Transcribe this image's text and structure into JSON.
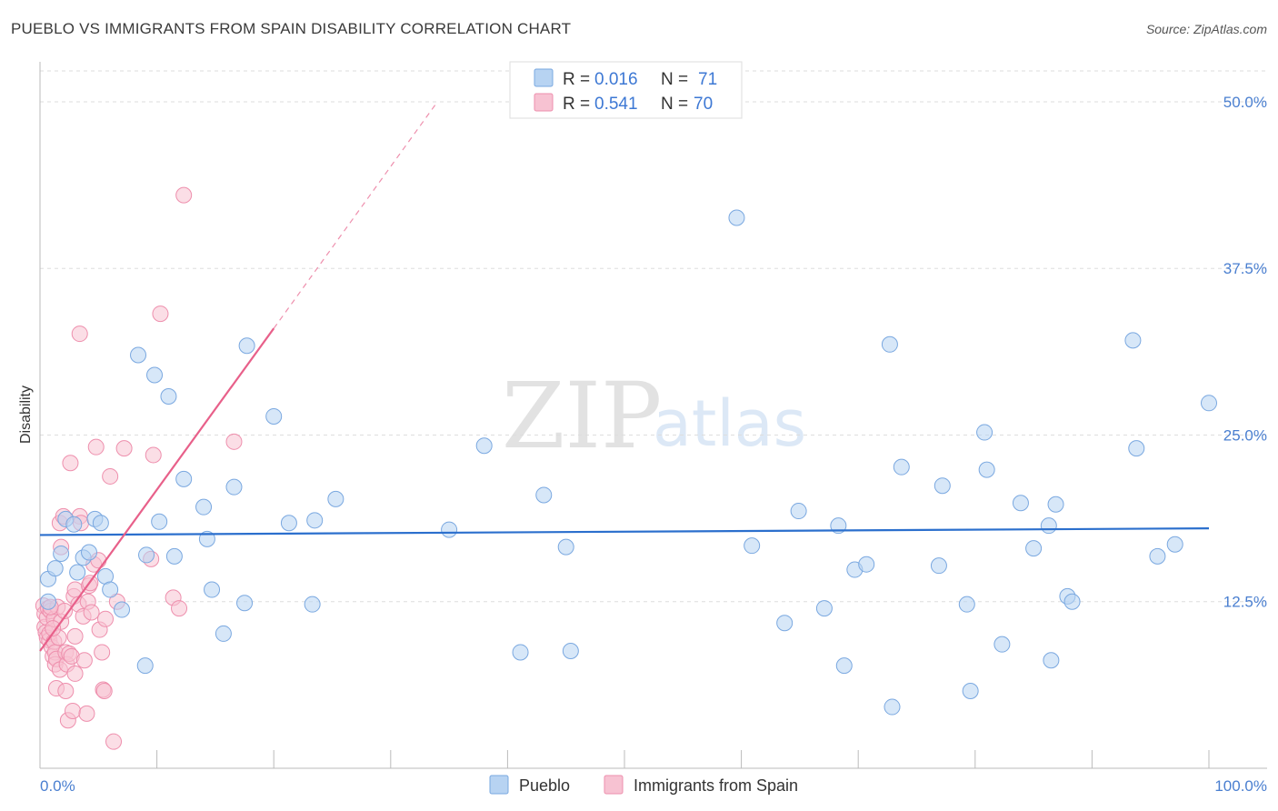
{
  "title": "PUEBLO VS IMMIGRANTS FROM SPAIN DISABILITY CORRELATION CHART",
  "source": "Source: ZipAtlas.com",
  "watermark": {
    "zip": "ZIP",
    "atlas": "atlas"
  },
  "colors": {
    "pueblo_fill": "#b7d3f2",
    "pueblo_stroke": "#7aa8e0",
    "pueblo_line": "#2b6fcd",
    "spain_fill": "#f7c2d2",
    "spain_stroke": "#ee8fad",
    "spain_line": "#e8608a",
    "tick_label": "#4a7fd0",
    "grid": "#dddddd"
  },
  "legend": {
    "rows": [
      {
        "r_label": "R =",
        "r_value": "0.016",
        "n_label": "N =",
        "n_value": "71"
      },
      {
        "r_label": "R =",
        "r_value": "0.541",
        "n_label": "N =",
        "n_value": "70"
      }
    ]
  },
  "chart_data": {
    "type": "scatter",
    "title": "PUEBLO VS IMMIGRANTS FROM SPAIN DISABILITY CORRELATION CHART",
    "xlabel": "",
    "ylabel": "Disability",
    "xlim": [
      0,
      100
    ],
    "ylim": [
      0,
      53
    ],
    "x_tick_labels": [
      "0.0%",
      "100.0%"
    ],
    "y_ticks": [
      12.5,
      25.0,
      37.5,
      50.0
    ],
    "y_tick_labels": [
      "12.5%",
      "25.0%",
      "37.5%",
      "50.0%"
    ],
    "grid": true,
    "legend_position": "top-center",
    "series": [
      {
        "name": "Pueblo",
        "r": 0.016,
        "n": 71,
        "trend": {
          "x0": 0,
          "y0": 17.5,
          "x1": 100,
          "y1": 18.0
        },
        "points": [
          [
            0.7,
            12.5
          ],
          [
            0.7,
            14.2
          ],
          [
            1.3,
            15.0
          ],
          [
            1.8,
            16.1
          ],
          [
            2.2,
            18.7
          ],
          [
            2.9,
            18.3
          ],
          [
            3.2,
            14.7
          ],
          [
            3.7,
            15.8
          ],
          [
            4.2,
            16.2
          ],
          [
            4.7,
            18.7
          ],
          [
            5.2,
            18.4
          ],
          [
            5.6,
            14.4
          ],
          [
            6.0,
            13.4
          ],
          [
            7.0,
            11.9
          ],
          [
            8.4,
            31.0
          ],
          [
            9.0,
            7.7
          ],
          [
            9.1,
            16.0
          ],
          [
            9.8,
            29.5
          ],
          [
            10.2,
            18.5
          ],
          [
            11.0,
            27.9
          ],
          [
            11.5,
            15.9
          ],
          [
            12.3,
            21.7
          ],
          [
            14.0,
            19.6
          ],
          [
            14.3,
            17.2
          ],
          [
            14.7,
            13.4
          ],
          [
            15.7,
            10.1
          ],
          [
            16.6,
            21.1
          ],
          [
            17.5,
            12.4
          ],
          [
            17.7,
            31.7
          ],
          [
            20.0,
            26.4
          ],
          [
            21.3,
            18.4
          ],
          [
            23.3,
            12.3
          ],
          [
            23.5,
            18.6
          ],
          [
            25.3,
            20.2
          ],
          [
            35.0,
            17.9
          ],
          [
            38.0,
            24.2
          ],
          [
            41.1,
            8.7
          ],
          [
            43.1,
            20.5
          ],
          [
            45.0,
            16.6
          ],
          [
            45.4,
            8.8
          ],
          [
            59.6,
            41.3
          ],
          [
            60.9,
            16.7
          ],
          [
            63.7,
            10.9
          ],
          [
            64.9,
            19.3
          ],
          [
            67.1,
            12.0
          ],
          [
            68.3,
            18.2
          ],
          [
            68.8,
            7.7
          ],
          [
            69.7,
            14.9
          ],
          [
            70.7,
            15.3
          ],
          [
            72.7,
            31.8
          ],
          [
            72.9,
            4.6
          ],
          [
            73.7,
            22.6
          ],
          [
            76.9,
            15.2
          ],
          [
            77.2,
            21.2
          ],
          [
            79.3,
            12.3
          ],
          [
            79.6,
            5.8
          ],
          [
            80.8,
            25.2
          ],
          [
            81.0,
            22.4
          ],
          [
            82.3,
            9.3
          ],
          [
            83.9,
            19.9
          ],
          [
            85.0,
            16.5
          ],
          [
            86.3,
            18.2
          ],
          [
            86.5,
            8.1
          ],
          [
            86.9,
            19.8
          ],
          [
            87.9,
            12.9
          ],
          [
            88.3,
            12.5
          ],
          [
            93.5,
            32.1
          ],
          [
            93.8,
            24.0
          ],
          [
            95.6,
            15.9
          ],
          [
            97.1,
            16.8
          ],
          [
            100.0,
            27.4
          ]
        ]
      },
      {
        "name": "Immigrants from Spain",
        "r": 0.541,
        "n": 70,
        "trend": {
          "x0": 0,
          "y0": 8.8,
          "x1": 20,
          "y1": 33.0,
          "dash_x1": 34,
          "dash_y1": 50.0
        },
        "points": [
          [
            0.3,
            12.2
          ],
          [
            0.4,
            11.6
          ],
          [
            0.4,
            10.6
          ],
          [
            0.5,
            10.2
          ],
          [
            0.6,
            9.8
          ],
          [
            0.6,
            11.3
          ],
          [
            0.7,
            12.0
          ],
          [
            0.8,
            9.6
          ],
          [
            0.8,
            10.1
          ],
          [
            0.9,
            11.8
          ],
          [
            1.0,
            9.1
          ],
          [
            1.1,
            8.4
          ],
          [
            1.2,
            11.2
          ],
          [
            1.2,
            9.5
          ],
          [
            1.3,
            8.7
          ],
          [
            1.3,
            7.8
          ],
          [
            1.4,
            8.2
          ],
          [
            1.4,
            6.0
          ],
          [
            1.5,
            12.1
          ],
          [
            1.6,
            9.8
          ],
          [
            1.7,
            7.4
          ],
          [
            1.7,
            18.4
          ],
          [
            1.8,
            16.6
          ],
          [
            1.8,
            11.0
          ],
          [
            2.0,
            18.9
          ],
          [
            2.1,
            11.8
          ],
          [
            2.2,
            8.7
          ],
          [
            2.2,
            5.8
          ],
          [
            2.3,
            7.8
          ],
          [
            2.4,
            3.6
          ],
          [
            2.5,
            8.6
          ],
          [
            2.6,
            22.9
          ],
          [
            2.7,
            8.4
          ],
          [
            2.8,
            4.3
          ],
          [
            2.9,
            12.9
          ],
          [
            3.0,
            13.4
          ],
          [
            3.0,
            7.1
          ],
          [
            3.0,
            9.9
          ],
          [
            3.3,
            12.3
          ],
          [
            3.4,
            32.6
          ],
          [
            3.4,
            18.9
          ],
          [
            3.5,
            18.4
          ],
          [
            3.7,
            11.4
          ],
          [
            3.8,
            8.1
          ],
          [
            4.0,
            4.1
          ],
          [
            4.1,
            12.5
          ],
          [
            4.2,
            13.7
          ],
          [
            4.3,
            13.9
          ],
          [
            4.4,
            11.7
          ],
          [
            4.6,
            15.3
          ],
          [
            4.8,
            24.1
          ],
          [
            5.0,
            15.6
          ],
          [
            5.1,
            10.4
          ],
          [
            5.3,
            8.7
          ],
          [
            5.4,
            5.9
          ],
          [
            5.5,
            5.8
          ],
          [
            5.6,
            11.2
          ],
          [
            6.0,
            21.9
          ],
          [
            6.3,
            2.0
          ],
          [
            6.6,
            12.5
          ],
          [
            7.2,
            24.0
          ],
          [
            9.5,
            15.7
          ],
          [
            9.7,
            23.5
          ],
          [
            10.3,
            34.1
          ],
          [
            11.4,
            12.8
          ],
          [
            11.9,
            12.0
          ],
          [
            12.3,
            43.0
          ],
          [
            16.6,
            24.5
          ],
          [
            0.9,
            12.1
          ],
          [
            1.1,
            10.5
          ]
        ]
      }
    ]
  },
  "bottom_legend": [
    {
      "label": "Pueblo"
    },
    {
      "label": "Immigrants from Spain"
    }
  ]
}
